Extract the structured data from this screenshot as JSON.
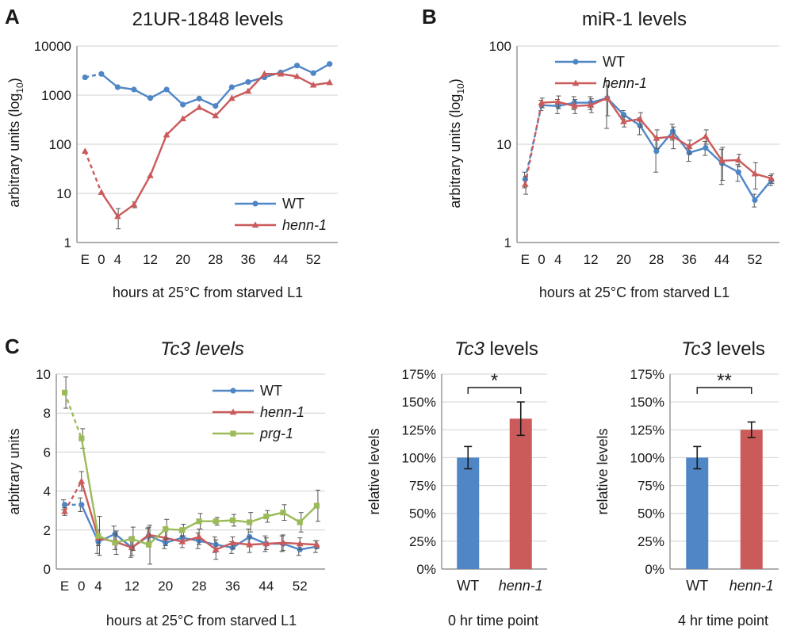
{
  "panels": [
    "A",
    "B",
    "C"
  ],
  "colors": {
    "wt": "#4f86c6",
    "henn": "#cb5a5a",
    "prg": "#9bbb59"
  },
  "chart_data": [
    {
      "id": "A",
      "type": "line",
      "title": "21UR-1848 levels",
      "xlabel": "hours at 25°C from starved L1",
      "ylabel": "arbitrary units (log10)",
      "yscale": "log",
      "ylim": [
        1,
        10000
      ],
      "yticks": [
        "1",
        "10",
        "100",
        "1000",
        "10000"
      ],
      "xticks": [
        "E",
        "0",
        "4",
        "12",
        "20",
        "28",
        "36",
        "44",
        "52"
      ],
      "x": [
        -4,
        0,
        4,
        8,
        12,
        16,
        20,
        24,
        28,
        32,
        36,
        40,
        44,
        48,
        52,
        56
      ],
      "legend": "bottom-right",
      "grid": true,
      "series": [
        {
          "name": "WT",
          "color": "#4f86c6",
          "marker": "circle",
          "values": [
            2300,
            2700,
            1450,
            1300,
            870,
            1300,
            640,
            850,
            600,
            1450,
            1850,
            2300,
            2900,
            4000,
            2800,
            4300
          ]
        },
        {
          "name": "henn-1",
          "color": "#cb5a5a",
          "marker": "triangle",
          "values": [
            72,
            10.5,
            3.4,
            5.9,
            23,
            155,
            330,
            560,
            380,
            860,
            1200,
            2700,
            2700,
            2400,
            1600,
            1800
          ],
          "errors": [
            null,
            null,
            1.5,
            0.8,
            null,
            null,
            null,
            null,
            null,
            null,
            null,
            null,
            null,
            null,
            null,
            null
          ]
        }
      ]
    },
    {
      "id": "B",
      "type": "line",
      "title": "miR-1 levels",
      "xlabel": "hours at 25°C from starved L1",
      "ylabel": "arbitrary units (log10)",
      "yscale": "log",
      "ylim": [
        1,
        100
      ],
      "yticks": [
        "1",
        "10",
        "100"
      ],
      "xticks": [
        "E",
        "0",
        "4",
        "12",
        "20",
        "28",
        "36",
        "44",
        "52"
      ],
      "x": [
        -4,
        0,
        4,
        8,
        12,
        16,
        20,
        24,
        28,
        32,
        36,
        40,
        44,
        48,
        52,
        56
      ],
      "legend": "top-right",
      "grid": true,
      "series": [
        {
          "name": "WT",
          "color": "#4f86c6",
          "marker": "circle",
          "values": [
            4.4,
            25,
            24.5,
            26.5,
            26.5,
            29.5,
            20,
            15.5,
            8.5,
            13.5,
            8.2,
            9.2,
            6.4,
            5.2,
            2.7,
            4.3
          ],
          "errors": [
            0.8,
            3,
            4,
            4,
            4,
            15,
            2,
            3,
            3.3,
            2.5,
            1.5,
            1.5,
            2.5,
            1,
            0.4,
            0.5
          ]
        },
        {
          "name": "henn-1",
          "color": "#cb5a5a",
          "marker": "triangle",
          "values": [
            3.9,
            26.5,
            27,
            24.5,
            25,
            29.5,
            17,
            18,
            11.5,
            12,
            9.5,
            12,
            6.8,
            6.9,
            5,
            4.5
          ],
          "errors": [
            0.8,
            3,
            4,
            4,
            4,
            10,
            2,
            3,
            2.5,
            3,
            1.5,
            2,
            2.5,
            1,
            1.5,
            0.5
          ]
        }
      ]
    },
    {
      "id": "C1",
      "type": "line",
      "title": "Tc3 levels",
      "xlabel": "hours at 25°C from starved L1",
      "ylabel": "arbitrary units",
      "ylim": [
        0,
        10
      ],
      "yticks": [
        "0",
        "2",
        "4",
        "6",
        "8",
        "10"
      ],
      "xticks": [
        "E",
        "0",
        "4",
        "12",
        "20",
        "28",
        "36",
        "44",
        "52"
      ],
      "x": [
        -4,
        0,
        4,
        8,
        12,
        16,
        20,
        24,
        28,
        32,
        36,
        40,
        44,
        48,
        52,
        56
      ],
      "legend": "top-right",
      "grid": true,
      "series": [
        {
          "name": "WT",
          "color": "#4f86c6",
          "marker": "circle",
          "values": [
            3.3,
            3.3,
            1.4,
            1.8,
            1.1,
            1.7,
            1.35,
            1.6,
            1.45,
            1.25,
            1.1,
            1.65,
            1.3,
            1.3,
            1.0,
            1.15
          ],
          "errors": [
            0.25,
            0.35,
            0.6,
            0.4,
            0.5,
            0.4,
            0.3,
            0.3,
            0.4,
            0.4,
            0.3,
            0.4,
            0.4,
            0.4,
            0.3,
            0.3
          ]
        },
        {
          "name": "henn-1",
          "color": "#cb5a5a",
          "marker": "triangle",
          "values": [
            2.95,
            4.5,
            1.6,
            1.4,
            1.1,
            1.75,
            1.6,
            1.4,
            1.65,
            1.0,
            1.35,
            1.25,
            1.3,
            1.35,
            1.3,
            1.25
          ],
          "errors": [
            0.2,
            0.5,
            0.4,
            0.4,
            0.4,
            0.4,
            0.4,
            0.3,
            0.4,
            0.5,
            0.3,
            0.4,
            0.3,
            0.4,
            0.3,
            0.2
          ]
        },
        {
          "name": "prg-1",
          "color": "#9bbb59",
          "marker": "square",
          "values": [
            9.05,
            6.7,
            1.7,
            1.35,
            1.55,
            1.25,
            2.05,
            2.0,
            2.45,
            2.45,
            2.5,
            2.4,
            2.7,
            2.9,
            2.4,
            3.25
          ],
          "errors": [
            0.8,
            0.5,
            1.0,
            0.6,
            0.6,
            1.0,
            0.5,
            0.3,
            0.4,
            0.2,
            0.3,
            0.5,
            0.3,
            0.4,
            0.5,
            0.8
          ]
        }
      ]
    },
    {
      "id": "C2",
      "type": "bar",
      "title": "Tc3 levels",
      "xlabel": "0 hr time point",
      "ylabel": "relative levels",
      "ylim": [
        0,
        175
      ],
      "yticks": [
        "0%",
        "25%",
        "50%",
        "75%",
        "100%",
        "125%",
        "150%",
        "175%"
      ],
      "categories": [
        "WT",
        "henn-1"
      ],
      "values": [
        100,
        135
      ],
      "errors": [
        10,
        15
      ],
      "colors": [
        "#4f86c6",
        "#cb5a5a"
      ],
      "significance": "*"
    },
    {
      "id": "C3",
      "type": "bar",
      "title": "Tc3 levels",
      "xlabel": "4 hr time point",
      "ylabel": "relative levels",
      "ylim": [
        0,
        175
      ],
      "yticks": [
        "0%",
        "25%",
        "50%",
        "75%",
        "100%",
        "125%",
        "150%",
        "175%"
      ],
      "categories": [
        "WT",
        "henn-1"
      ],
      "values": [
        100,
        125
      ],
      "errors": [
        10,
        7
      ],
      "colors": [
        "#4f86c6",
        "#cb5a5a"
      ],
      "significance": "**"
    }
  ]
}
